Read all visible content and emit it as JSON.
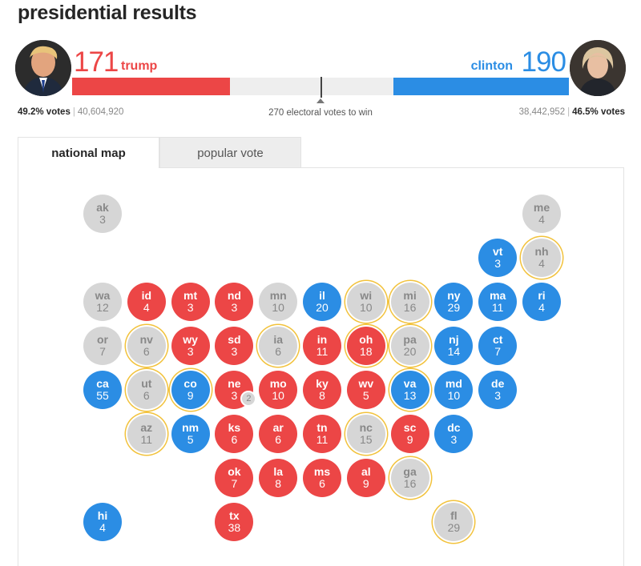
{
  "title": "presidential results",
  "colors": {
    "republican": "#ec4646",
    "democrat": "#2b8de4",
    "undecided": "#d6d6d6",
    "undecided_text": "#888888",
    "winner_text": "#ffffff",
    "battleground_ring": "#f2c23c"
  },
  "trump": {
    "count": "171",
    "name": "trump",
    "percent": "49.2% votes",
    "votes": "40,604,920",
    "electoral_votes": 171,
    "avatar_icon": "trump-portrait-icon"
  },
  "clinton": {
    "count": "190",
    "name": "clinton",
    "percent": "46.5% votes",
    "votes": "38,442,952",
    "electoral_votes": 190,
    "avatar_icon": "clinton-portrait-icon"
  },
  "win_label": "270 electoral votes to win",
  "total_electoral_votes": 538,
  "tabs": [
    {
      "label": "national map",
      "active": true
    },
    {
      "label": "popular vote",
      "active": false
    }
  ],
  "states": [
    {
      "abbr": "ak",
      "ev": "3",
      "status": "undecided",
      "outline": false,
      "col": 0,
      "row": 0
    },
    {
      "abbr": "me",
      "ev": "4",
      "status": "undecided",
      "outline": false,
      "col": 10,
      "row": 0
    },
    {
      "abbr": "vt",
      "ev": "3",
      "status": "dem",
      "outline": false,
      "col": 9,
      "row": 1
    },
    {
      "abbr": "nh",
      "ev": "4",
      "status": "undecided",
      "outline": true,
      "col": 10,
      "row": 1
    },
    {
      "abbr": "wa",
      "ev": "12",
      "status": "undecided",
      "outline": false,
      "col": 0,
      "row": 2
    },
    {
      "abbr": "id",
      "ev": "4",
      "status": "rep",
      "outline": false,
      "col": 1,
      "row": 2
    },
    {
      "abbr": "mt",
      "ev": "3",
      "status": "rep",
      "outline": false,
      "col": 2,
      "row": 2
    },
    {
      "abbr": "nd",
      "ev": "3",
      "status": "rep",
      "outline": false,
      "col": 3,
      "row": 2
    },
    {
      "abbr": "mn",
      "ev": "10",
      "status": "undecided",
      "outline": false,
      "col": 4,
      "row": 2
    },
    {
      "abbr": "il",
      "ev": "20",
      "status": "dem",
      "outline": false,
      "col": 5,
      "row": 2
    },
    {
      "abbr": "wi",
      "ev": "10",
      "status": "undecided",
      "outline": true,
      "col": 6,
      "row": 2
    },
    {
      "abbr": "mi",
      "ev": "16",
      "status": "undecided",
      "outline": true,
      "col": 7,
      "row": 2
    },
    {
      "abbr": "ny",
      "ev": "29",
      "status": "dem",
      "outline": false,
      "col": 8,
      "row": 2
    },
    {
      "abbr": "ma",
      "ev": "11",
      "status": "dem",
      "outline": false,
      "col": 9,
      "row": 2
    },
    {
      "abbr": "ri",
      "ev": "4",
      "status": "dem",
      "outline": false,
      "col": 10,
      "row": 2
    },
    {
      "abbr": "or",
      "ev": "7",
      "status": "undecided",
      "outline": false,
      "col": 0,
      "row": 3
    },
    {
      "abbr": "nv",
      "ev": "6",
      "status": "undecided",
      "outline": true,
      "col": 1,
      "row": 3
    },
    {
      "abbr": "wy",
      "ev": "3",
      "status": "rep",
      "outline": false,
      "col": 2,
      "row": 3
    },
    {
      "abbr": "sd",
      "ev": "3",
      "status": "rep",
      "outline": false,
      "col": 3,
      "row": 3
    },
    {
      "abbr": "ia",
      "ev": "6",
      "status": "undecided",
      "outline": true,
      "col": 4,
      "row": 3
    },
    {
      "abbr": "in",
      "ev": "11",
      "status": "rep",
      "outline": false,
      "col": 5,
      "row": 3
    },
    {
      "abbr": "oh",
      "ev": "18",
      "status": "rep",
      "outline": true,
      "col": 6,
      "row": 3
    },
    {
      "abbr": "pa",
      "ev": "20",
      "status": "undecided",
      "outline": true,
      "col": 7,
      "row": 3
    },
    {
      "abbr": "nj",
      "ev": "14",
      "status": "dem",
      "outline": false,
      "col": 8,
      "row": 3
    },
    {
      "abbr": "ct",
      "ev": "7",
      "status": "dem",
      "outline": false,
      "col": 9,
      "row": 3
    },
    {
      "abbr": "ca",
      "ev": "55",
      "status": "dem",
      "outline": false,
      "col": 0,
      "row": 4
    },
    {
      "abbr": "ut",
      "ev": "6",
      "status": "undecided",
      "outline": true,
      "col": 1,
      "row": 4
    },
    {
      "abbr": "co",
      "ev": "9",
      "status": "dem",
      "outline": true,
      "col": 2,
      "row": 4
    },
    {
      "abbr": "ne",
      "ev": "3",
      "status": "rep",
      "outline": false,
      "col": 3,
      "row": 4,
      "badge": "2"
    },
    {
      "abbr": "mo",
      "ev": "10",
      "status": "rep",
      "outline": false,
      "col": 4,
      "row": 4
    },
    {
      "abbr": "ky",
      "ev": "8",
      "status": "rep",
      "outline": false,
      "col": 5,
      "row": 4
    },
    {
      "abbr": "wv",
      "ev": "5",
      "status": "rep",
      "outline": false,
      "col": 6,
      "row": 4
    },
    {
      "abbr": "va",
      "ev": "13",
      "status": "dem",
      "outline": true,
      "col": 7,
      "row": 4
    },
    {
      "abbr": "md",
      "ev": "10",
      "status": "dem",
      "outline": false,
      "col": 8,
      "row": 4
    },
    {
      "abbr": "de",
      "ev": "3",
      "status": "dem",
      "outline": false,
      "col": 9,
      "row": 4
    },
    {
      "abbr": "az",
      "ev": "11",
      "status": "undecided",
      "outline": true,
      "col": 1,
      "row": 5
    },
    {
      "abbr": "nm",
      "ev": "5",
      "status": "dem",
      "outline": false,
      "col": 2,
      "row": 5
    },
    {
      "abbr": "ks",
      "ev": "6",
      "status": "rep",
      "outline": false,
      "col": 3,
      "row": 5
    },
    {
      "abbr": "ar",
      "ev": "6",
      "status": "rep",
      "outline": false,
      "col": 4,
      "row": 5
    },
    {
      "abbr": "tn",
      "ev": "11",
      "status": "rep",
      "outline": false,
      "col": 5,
      "row": 5
    },
    {
      "abbr": "nc",
      "ev": "15",
      "status": "undecided",
      "outline": true,
      "col": 6,
      "row": 5
    },
    {
      "abbr": "sc",
      "ev": "9",
      "status": "rep",
      "outline": false,
      "col": 7,
      "row": 5
    },
    {
      "abbr": "dc",
      "ev": "3",
      "status": "dem",
      "outline": false,
      "col": 8,
      "row": 5
    },
    {
      "abbr": "ok",
      "ev": "7",
      "status": "rep",
      "outline": false,
      "col": 3,
      "row": 6
    },
    {
      "abbr": "la",
      "ev": "8",
      "status": "rep",
      "outline": false,
      "col": 4,
      "row": 6
    },
    {
      "abbr": "ms",
      "ev": "6",
      "status": "rep",
      "outline": false,
      "col": 5,
      "row": 6
    },
    {
      "abbr": "al",
      "ev": "9",
      "status": "rep",
      "outline": false,
      "col": 6,
      "row": 6
    },
    {
      "abbr": "ga",
      "ev": "16",
      "status": "undecided",
      "outline": true,
      "col": 7,
      "row": 6
    },
    {
      "abbr": "hi",
      "ev": "4",
      "status": "dem",
      "outline": false,
      "col": 0,
      "row": 7
    },
    {
      "abbr": "tx",
      "ev": "38",
      "status": "rep",
      "outline": false,
      "col": 3,
      "row": 7
    },
    {
      "abbr": "fl",
      "ev": "29",
      "status": "undecided",
      "outline": true,
      "col": 8,
      "row": 7
    }
  ]
}
